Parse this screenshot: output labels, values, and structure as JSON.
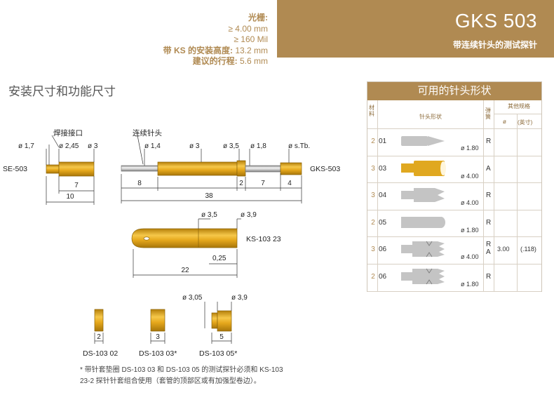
{
  "specs": {
    "grid_label": "光栅:",
    "grid_mm": "≥ 4.00 mm",
    "grid_mil": "≥ 160 Mil",
    "install_height_label": "带 KS 的安装高度:",
    "install_height_value": "13.2 mm",
    "travel_label": "建议的行程:",
    "travel_value": "5.6 mm"
  },
  "header": {
    "title": "GKS 503",
    "subtitle": "带连续针头的测试探针"
  },
  "section_title": "安装尺寸和功能尺寸",
  "diagram": {
    "se": {
      "name": "SE-503",
      "label_solder": "焊接接口",
      "d1": "ø 1,7",
      "d2": "ø 2,45",
      "d3": "ø 3",
      "len_a": "7",
      "len_b": "10"
    },
    "gks": {
      "name": "GKS-503",
      "label_tip": "连续针头",
      "d1": "ø 1,4",
      "d2": "ø 3",
      "d3": "ø 3,5",
      "d4": "ø 1,8",
      "d5": "ø s.Tb.",
      "len_a": "8",
      "len_b": "2",
      "len_c": "7",
      "len_d": "4",
      "len_total": "38"
    },
    "ks": {
      "name": "KS-103 23",
      "d1": "ø 3,5",
      "d2": "ø 3,9",
      "wall": "0,25",
      "len": "22"
    },
    "ds": [
      {
        "name": "DS-103 02",
        "len": "2"
      },
      {
        "name": "DS-103 03*",
        "len": "3"
      },
      {
        "name": "DS-103 05*",
        "len": "5",
        "d1": "ø 3,05",
        "d2": "ø 3,9"
      }
    ]
  },
  "footnote": "* 带针套垫圈 DS-103 03 和 DS-103 05 的测试探针必须和 KS-103 23-2 探针针套组合使用（套管的顶部区或有加强型卷边）。",
  "tip_table": {
    "title": "可用的针头形状",
    "col_material": "材料",
    "col_shape": "针头形状",
    "col_spring": "弹簧",
    "col_other": "其他规格",
    "col_d": "ø",
    "col_inch": "(英寸)",
    "rows": [
      {
        "material": "2",
        "num": "01",
        "dia": "ø 1.80",
        "spring": "R",
        "d": "",
        "inch": "",
        "shape": "cone",
        "color": "#c4c4c4"
      },
      {
        "material": "3",
        "num": "03",
        "dia": "ø 4.00",
        "spring": "A",
        "d": "",
        "inch": "",
        "shape": "cup",
        "color": "#e0a820"
      },
      {
        "material": "3",
        "num": "04",
        "dia": "ø 4.00",
        "spring": "R",
        "d": "",
        "inch": "",
        "shape": "vcrown",
        "color": "#c4c4c4"
      },
      {
        "material": "2",
        "num": "05",
        "dia": "ø 1.80",
        "spring": "R",
        "d": "",
        "inch": "",
        "shape": "round",
        "color": "#c4c4c4"
      },
      {
        "material": "3",
        "num": "06",
        "dia": "ø 4.00",
        "spring": "R A",
        "d": "3.00",
        "inch": "(.118)",
        "shape": "crown",
        "color": "#c4c4c4"
      },
      {
        "material": "2",
        "num": "06",
        "dia": "ø 1.80",
        "spring": "R",
        "d": "",
        "inch": "",
        "shape": "crown",
        "color": "#c4c4c4"
      }
    ]
  },
  "colors": {
    "accent": "#b08a52",
    "gold": "#e2a61c",
    "gold_dark": "#b57f0a",
    "silver": "#c4c4c4"
  }
}
